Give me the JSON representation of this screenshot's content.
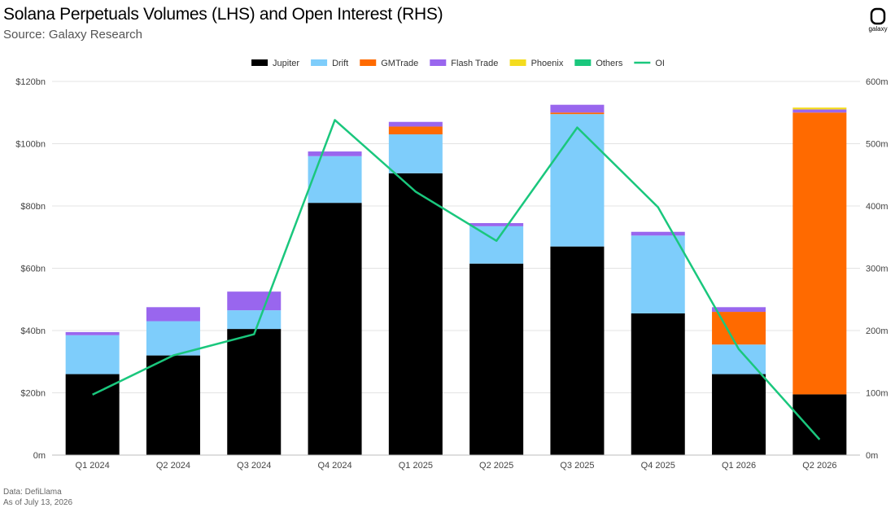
{
  "header": {
    "title": "Solana Perpetuals Volumes (LHS) and Open Interest (RHS)",
    "subtitle": "Source: Galaxy Research"
  },
  "logo": {
    "name": "galaxy-logo-icon",
    "label": "galaxy"
  },
  "footer": {
    "line1": "Data: DefiLlama",
    "line2": "As of July 13, 2026"
  },
  "chart_data": {
    "type": "bar",
    "stacked": true,
    "categories": [
      "Q1 2024",
      "Q2 2024",
      "Q3 2024",
      "Q4 2024",
      "Q1 2025",
      "Q2 2025",
      "Q3 2025",
      "Q4 2025",
      "Q1 2026",
      "Q2 2026"
    ],
    "series": [
      {
        "name": "Jupiter",
        "color": "#000000",
        "values": [
          26,
          32,
          40.5,
          81,
          90.5,
          61.5,
          67,
          45.5,
          26,
          19.5
        ]
      },
      {
        "name": "Drift",
        "color": "#7ecdfb",
        "values": [
          12.5,
          11,
          6,
          15,
          12.5,
          12,
          42.5,
          25,
          9.5,
          0
        ]
      },
      {
        "name": "GMTrade",
        "color": "#ff6a00",
        "values": [
          0,
          0,
          0,
          0,
          2.5,
          0,
          0.5,
          0,
          10.5,
          90.5
        ]
      },
      {
        "name": "Flash Trade",
        "color": "#9966ee",
        "values": [
          1,
          4.5,
          6,
          1.5,
          1.5,
          1,
          2.5,
          1.2,
          1.5,
          1
        ]
      },
      {
        "name": "Phoenix",
        "color": "#f4dc1e",
        "values": [
          0,
          0,
          0,
          0,
          0,
          0,
          0,
          0,
          0,
          0.6
        ]
      },
      {
        "name": "Others",
        "color": "#1ac77d",
        "values": [
          0,
          0,
          0,
          0,
          0,
          0,
          0,
          0,
          0,
          0
        ]
      }
    ],
    "line_series": {
      "name": "OI",
      "color": "#1ac77d",
      "axis": "right",
      "values": [
        97,
        160,
        194,
        538,
        423,
        344,
        526,
        398,
        170,
        25
      ]
    },
    "left_axis": {
      "ylim": [
        0,
        120
      ],
      "ticks": [
        0,
        20,
        40,
        60,
        80,
        100,
        120
      ],
      "tick_labels": [
        "0m",
        "$20bn",
        "$40bn",
        "$60bn",
        "$80bn",
        "$100bn",
        "$120bn"
      ]
    },
    "right_axis": {
      "ylim": [
        0,
        600
      ],
      "ticks": [
        0,
        100,
        200,
        300,
        400,
        500,
        600
      ],
      "tick_labels": [
        "0m",
        "100m",
        "200m",
        "300m",
        "400m",
        "500m",
        "600m"
      ]
    },
    "grid": true,
    "legend_position": "top-center",
    "legend_items": [
      "Jupiter",
      "Drift",
      "GMTrade",
      "Flash Trade",
      "Phoenix",
      "Others",
      "OI"
    ]
  }
}
